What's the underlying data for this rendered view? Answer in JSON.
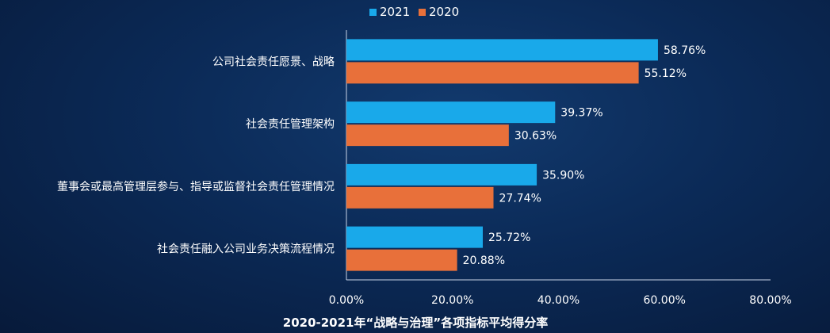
{
  "chart_data": {
    "type": "bar",
    "orientation": "horizontal",
    "title": "2020-2021年“战略与治理”各项指标平均得分率",
    "categories": [
      "公司社会责任愿景、战略",
      "社会责任管理架构",
      "董事会或最高管理层参与、指导或监督社会责任管理情况",
      "社会责任融入公司业务决策流程情况"
    ],
    "series": [
      {
        "name": "2021",
        "values": [
          58.76,
          39.37,
          35.9,
          25.72
        ],
        "labels": [
          "58.76%",
          "39.37%",
          "35.90%",
          "25.72%"
        ],
        "color": "#19a9ea"
      },
      {
        "name": "2020",
        "values": [
          55.12,
          30.63,
          27.74,
          20.88
        ],
        "labels": [
          "55.12%",
          "30.63%",
          "27.74%",
          "20.88%"
        ],
        "color": "#e8703a"
      }
    ],
    "xlim": [
      0,
      80
    ],
    "xticks": [
      "0.00%",
      "20.00%",
      "40.00%",
      "60.00%",
      "80.00%"
    ],
    "xlabel": "",
    "ylabel": "",
    "legend_position": "top",
    "grid": false
  },
  "colors": {
    "background": "#0b2a57",
    "axis": "#c8d3e6"
  }
}
